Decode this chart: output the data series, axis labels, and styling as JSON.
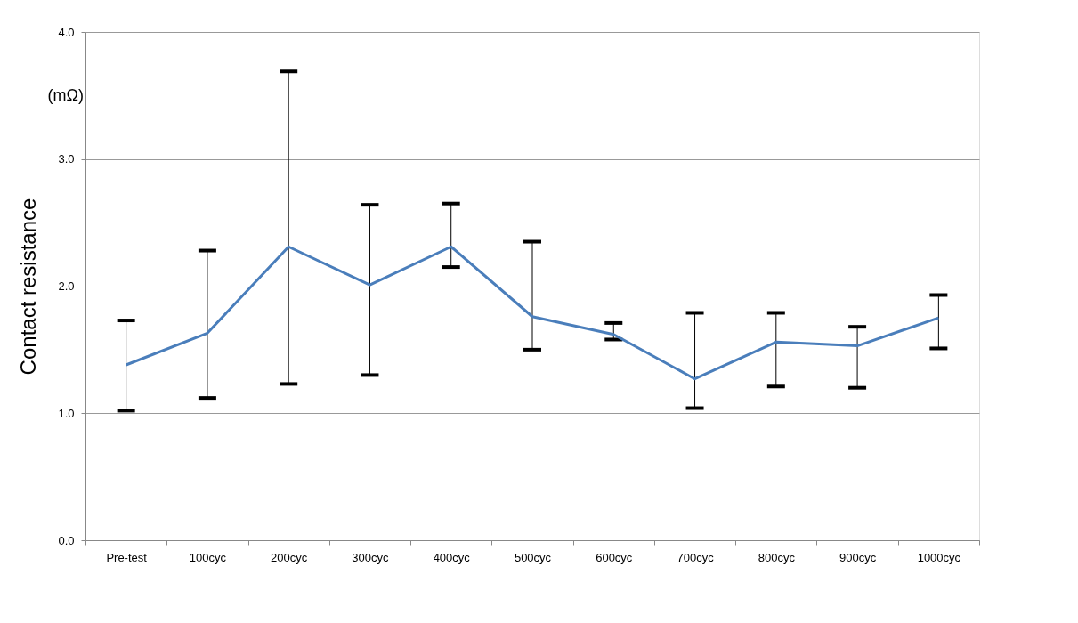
{
  "chart_data": {
    "type": "line",
    "ylabel": "Contact resistance",
    "annotations": [
      "(mΩ)"
    ],
    "categories": [
      "Pre-test",
      "100cyc",
      "200cyc",
      "300cyc",
      "400cyc",
      "500cyc",
      "600cyc",
      "700cyc",
      "800cyc",
      "900cyc",
      "1000cyc"
    ],
    "series": [
      {
        "color": "#4a7ebb",
        "values": [
          1.38,
          1.63,
          2.31,
          2.01,
          2.31,
          1.76,
          1.62,
          1.27,
          1.56,
          1.53,
          1.75
        ],
        "errors": [
          [
            1.02,
            1.73
          ],
          [
            1.12,
            2.28
          ],
          [
            1.23,
            3.69
          ],
          [
            1.3,
            2.64
          ],
          [
            2.15,
            2.65
          ],
          [
            1.5,
            2.35
          ],
          [
            1.58,
            1.71
          ],
          [
            1.04,
            1.79
          ],
          [
            1.21,
            1.79
          ],
          [
            1.2,
            1.68
          ],
          [
            1.51,
            1.93
          ]
        ]
      }
    ],
    "ylim": [
      0,
      4
    ],
    "yticks": [
      {
        "value": 0,
        "label": "0.0"
      },
      {
        "value": 1,
        "label": "1.0"
      },
      {
        "value": 2,
        "label": "2.0"
      },
      {
        "value": 3,
        "label": "3.0"
      },
      {
        "value": 4,
        "label": "4.0"
      }
    ],
    "grid": "y",
    "marker": "none",
    "line_style": "solid"
  }
}
